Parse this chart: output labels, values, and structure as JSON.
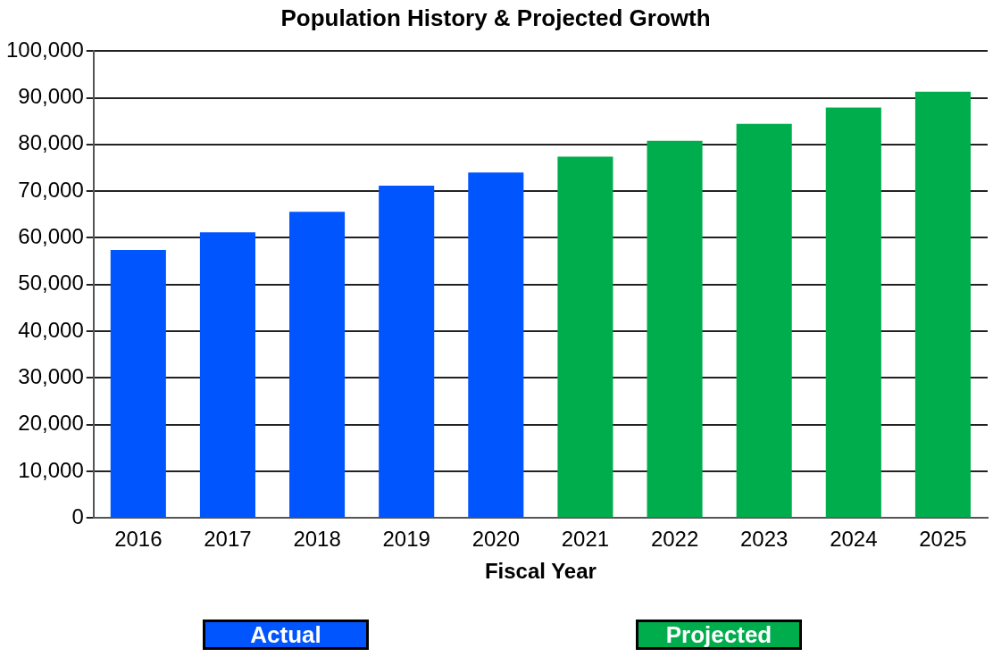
{
  "chart_data": {
    "type": "bar",
    "title": "Population History & Projected Growth",
    "xlabel": "Fiscal Year",
    "categories": [
      "2016",
      "2017",
      "2018",
      "2019",
      "2020",
      "2021",
      "2022",
      "2023",
      "2024",
      "2025"
    ],
    "series": [
      {
        "name": "Actual",
        "color": "#0055ff",
        "values": [
          57400,
          61200,
          65600,
          71200,
          74000,
          null,
          null,
          null,
          null,
          null
        ]
      },
      {
        "name": "Projected",
        "color": "#00ad4d",
        "values": [
          null,
          null,
          null,
          null,
          null,
          77400,
          80800,
          84400,
          87900,
          91300
        ]
      }
    ],
    "ylim": [
      0,
      100000
    ],
    "yticks": [
      {
        "value": 0,
        "label": "0"
      },
      {
        "value": 10000,
        "label": "10,000"
      },
      {
        "value": 20000,
        "label": "20,000"
      },
      {
        "value": 30000,
        "label": "30,000"
      },
      {
        "value": 40000,
        "label": "40,000"
      },
      {
        "value": 50000,
        "label": "50,000"
      },
      {
        "value": 60000,
        "label": "60,000"
      },
      {
        "value": 70000,
        "label": "70,000"
      },
      {
        "value": 80000,
        "label": "80,000"
      },
      {
        "value": 90000,
        "label": "90,000"
      },
      {
        "value": 100000,
        "label": "100,000"
      }
    ],
    "grid": "y",
    "legend": "bottom"
  }
}
